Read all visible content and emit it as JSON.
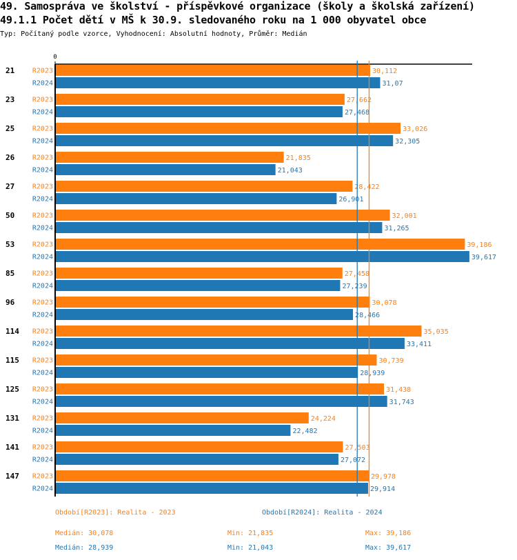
{
  "header": {
    "title": "49. Samospráva ve školství - příspěvkové organizace (školy a školská zařízení)",
    "subtitle": "49.1.1 Počet dětí v MŠ k 30.9. sledovaného roku na 1 000 obyvatel obce",
    "meta": "Typ: Počítaný podle vzorce, Vyhodnocení: Absolutní hodnoty, Průměr: Medián"
  },
  "colors": {
    "r2023": "#ff7f0e",
    "r2024": "#1f77b4",
    "axis": "#000000"
  },
  "chart_data": {
    "type": "bar",
    "orientation": "horizontal",
    "title": "49.1.1 Počet dětí v MŠ k 30.9. sledovaného roku na 1 000 obyvatel obce",
    "x_tick_labels": [
      "0"
    ],
    "xlim": [
      0,
      40
    ],
    "categories": [
      "21",
      "23",
      "25",
      "26",
      "27",
      "50",
      "53",
      "85",
      "96",
      "114",
      "115",
      "125",
      "131",
      "141",
      "147"
    ],
    "series": [
      {
        "name": "R2023",
        "color": "#ff7f0e",
        "values": [
          30.112,
          27.662,
          33.026,
          21.835,
          28.422,
          32.001,
          39.186,
          27.458,
          30.078,
          35.035,
          30.739,
          31.438,
          24.224,
          27.503,
          29.978
        ],
        "labels": [
          "30,112",
          "27,662",
          "33,026",
          "21,835",
          "28,422",
          "32,001",
          "39,186",
          "27,458",
          "30,078",
          "35,035",
          "30,739",
          "31,438",
          "24,224",
          "27,503",
          "29,978"
        ]
      },
      {
        "name": "R2024",
        "color": "#1f77b4",
        "values": [
          31.07,
          27.468,
          32.305,
          21.043,
          26.901,
          31.265,
          39.617,
          27.239,
          28.466,
          33.411,
          28.939,
          31.743,
          22.482,
          27.072,
          29.914
        ],
        "labels": [
          "31,07",
          "27,468",
          "32,305",
          "21,043",
          "26,901",
          "31,265",
          "39,617",
          "27,239",
          "28,466",
          "33,411",
          "28,939",
          "31,743",
          "22,482",
          "27,072",
          "29,914"
        ]
      }
    ],
    "reference_lines": [
      {
        "series": "R2023",
        "kind": "median",
        "value": 30.078
      },
      {
        "series": "R2024",
        "kind": "median",
        "value": 28.939
      }
    ],
    "grid": false
  },
  "legend": {
    "r2023": "Období[R2023]: Realita - 2023",
    "r2024": "Období[R2024]: Realita - 2024"
  },
  "stats": {
    "r2023": {
      "median": "Medián: 30,078",
      "min": "Min: 21,835",
      "max": "Max: 39,186"
    },
    "r2024": {
      "median": "Medián: 28,939",
      "min": "Min: 21,043",
      "max": "Max: 39,617"
    }
  }
}
